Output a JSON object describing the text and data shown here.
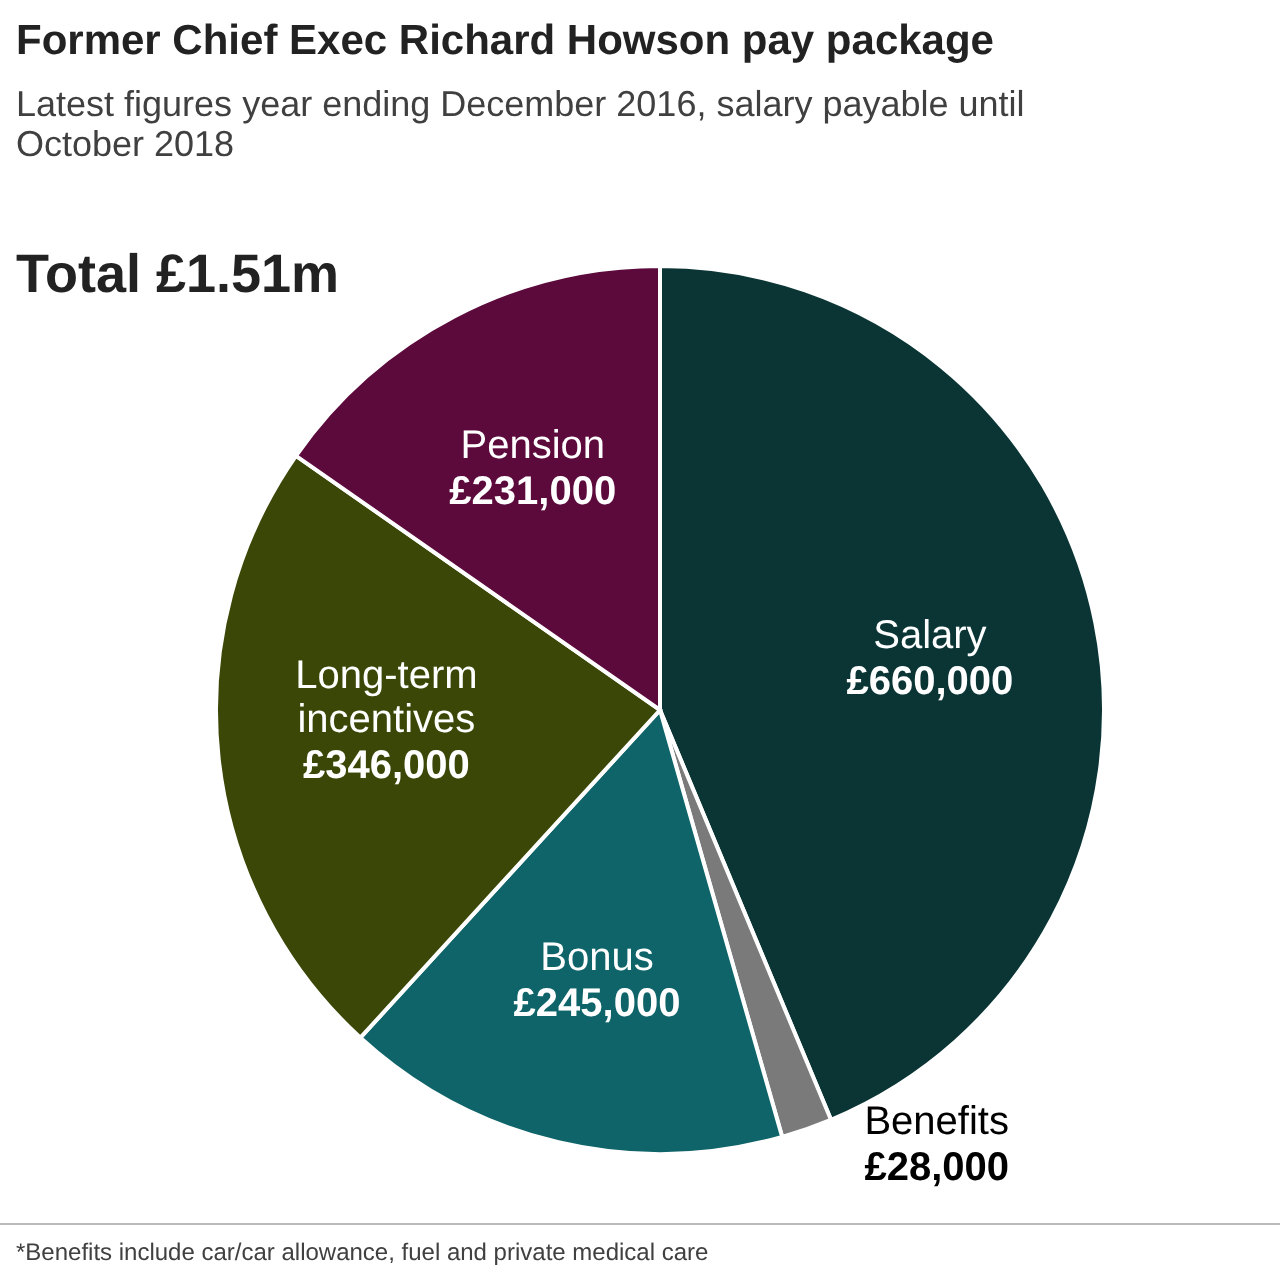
{
  "chart_data": {
    "type": "pie",
    "title": "Former Chief Exec Richard Howson pay package",
    "subtitle": "Latest figures year ending December 2016, salary payable until October 2018",
    "categories": [
      "Salary",
      "Benefits",
      "Bonus",
      "Long-term incentives",
      "Pension"
    ],
    "values": [
      660000,
      28000,
      245000,
      346000,
      231000
    ],
    "value_labels": [
      "£660,000",
      "£28,000",
      "£245,000",
      "£346,000",
      "£231,000"
    ],
    "colors": [
      "#0b3535",
      "#7a7a7a",
      "#0e6468",
      "#3a4707",
      "#5c0a3c"
    ],
    "annotations": [
      "Total £1.51m",
      "*Benefits include car/car allowance, fuel and private medical care"
    ]
  }
}
